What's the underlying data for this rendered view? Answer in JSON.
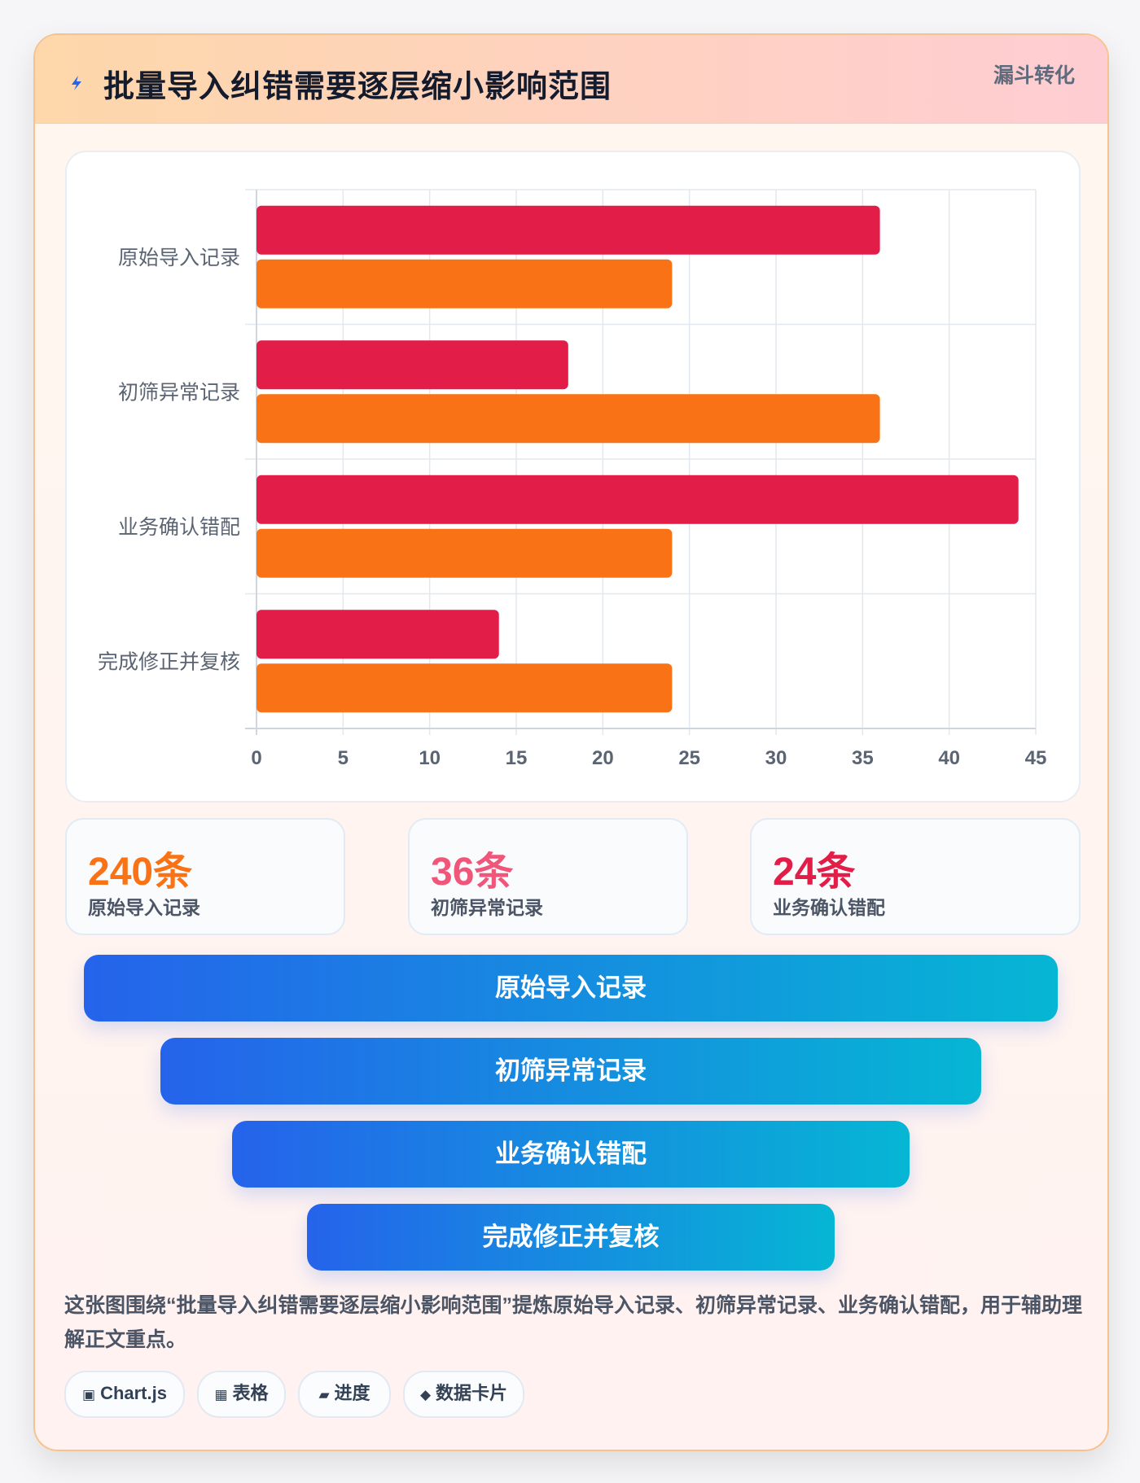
{
  "header": {
    "title": "批量导入纠错需要逐层缩小影响范围",
    "tag": "漏斗转化",
    "icon": "lightning-icon"
  },
  "chart_data": {
    "type": "bar",
    "orientation": "horizontal",
    "categories": [
      "原始导入记录",
      "初筛异常记录",
      "业务确认错配",
      "完成修正并复核"
    ],
    "series": [
      {
        "values": [
          36,
          18,
          44,
          14
        ],
        "color": "#e11d48"
      },
      {
        "values": [
          24,
          36,
          24,
          24
        ],
        "color": "#f97316"
      }
    ],
    "xlim": [
      0,
      45
    ],
    "xticks": [
      0,
      5,
      10,
      15,
      20,
      25,
      30,
      35,
      40,
      45
    ],
    "grid": true,
    "legend": "none"
  },
  "stats": [
    {
      "value": "240条",
      "label": "原始导入记录",
      "color": "#f97316"
    },
    {
      "value": "36条",
      "label": "初筛异常记录",
      "color": "#f0557a"
    },
    {
      "value": "24条",
      "label": "业务确认错配",
      "color": "#e11d48"
    }
  ],
  "funnel": [
    {
      "label": "原始导入记录"
    },
    {
      "label": "初筛异常记录"
    },
    {
      "label": "业务确认错配"
    },
    {
      "label": "完成修正并复核"
    }
  ],
  "description": "这张图围绕“批量导入纠错需要逐层缩小影响范围”提炼原始导入记录、初筛异常记录、业务确认错配，用于辅助理解正文重点。",
  "chips": [
    {
      "icon": "▣",
      "label": "Chart.js"
    },
    {
      "icon": "▦",
      "label": "表格"
    },
    {
      "icon": "▰",
      "label": "进度"
    },
    {
      "icon": "◆",
      "label": "数据卡片"
    }
  ]
}
